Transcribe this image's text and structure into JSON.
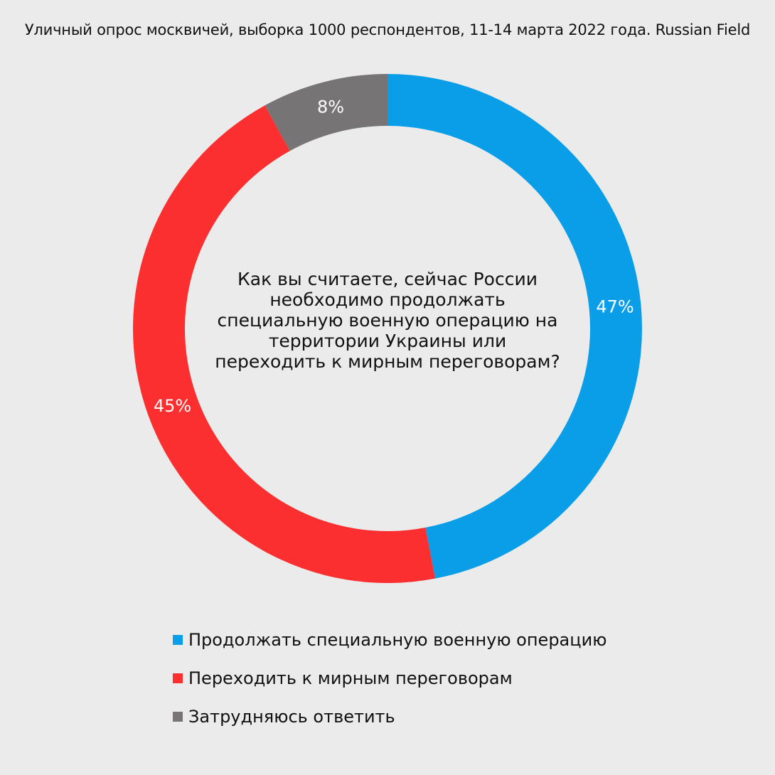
{
  "header": {
    "subtitle": "Уличный опрос москвичей, выборка 1000 респондентов, 11-14 марта 2022 года. Russian Field"
  },
  "center": {
    "question": "Как вы считаете, сейчас России необходимо продолжать специальную военную операцию на территории Украины или переходить к мирным переговорам?"
  },
  "chart_data": {
    "type": "pie",
    "subtype": "donut",
    "start": "top, clockwise",
    "categories": [
      "Продолжать специальную военную операцию",
      "Переходить к мирным переговорам",
      "Затрудняюсь ответить"
    ],
    "values": [
      47,
      45,
      8
    ],
    "value_labels": [
      "47%",
      "45%",
      "8%"
    ],
    "colors": [
      "#0b9ee8",
      "#fb2f2f",
      "#767474"
    ],
    "legend_position": "bottom"
  }
}
